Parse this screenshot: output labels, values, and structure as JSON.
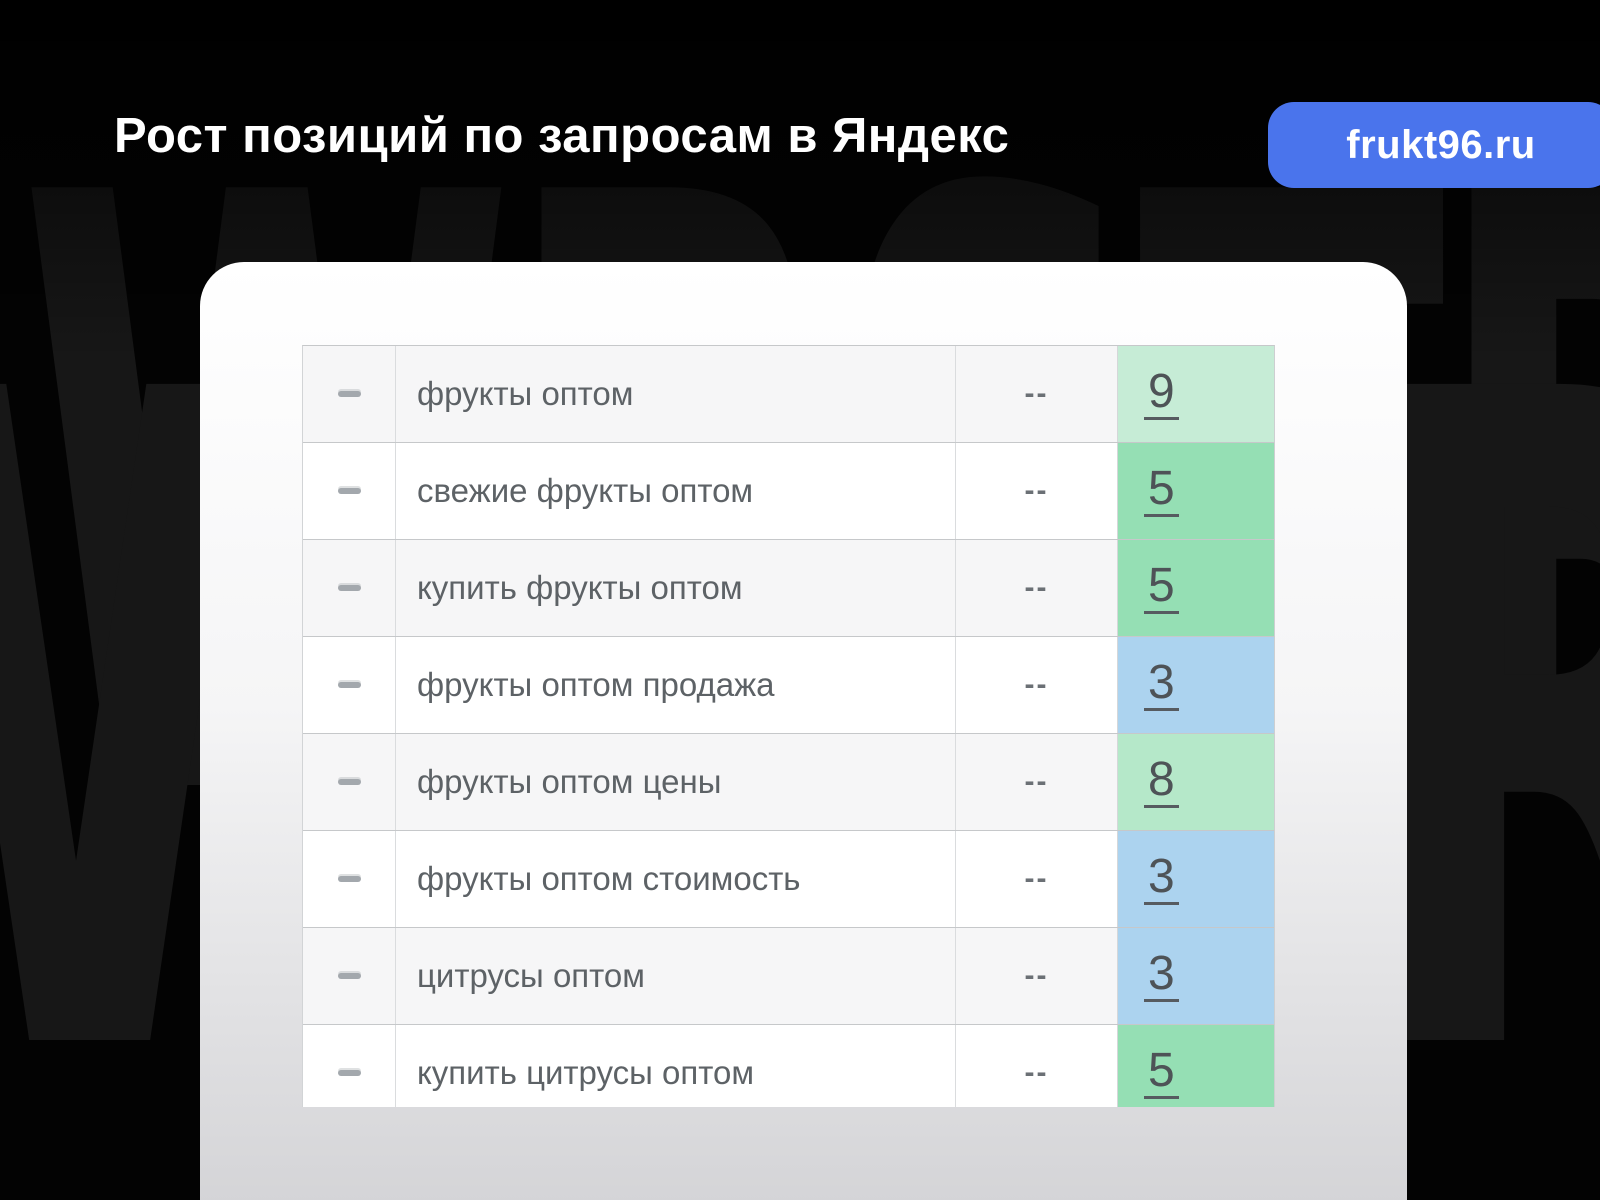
{
  "header": {
    "title": "Рост позиций по запросам в Яндекс",
    "badge": "frukt96.ru",
    "badge_color": "#4a74ec"
  },
  "watermark": {
    "line1": "WBSTR",
    "line2_left_letter": "W",
    "line2_right_letter": "R"
  },
  "table": {
    "rows": [
      {
        "keyword": "фрукты оптом",
        "old": "--",
        "value": "9",
        "color": "#c6ecd6"
      },
      {
        "keyword": "свежие фрукты оптом",
        "old": "--",
        "value": "5",
        "color": "#95dfb4"
      },
      {
        "keyword": "купить фрукты оптом",
        "old": "--",
        "value": "5",
        "color": "#95dfb4"
      },
      {
        "keyword": "фрукты оптом продажа",
        "old": "--",
        "value": "3",
        "color": "#acd3ef"
      },
      {
        "keyword": "фрукты оптом цены",
        "old": "--",
        "value": "8",
        "color": "#b5e8c9"
      },
      {
        "keyword": "фрукты оптом стоимость",
        "old": "--",
        "value": "3",
        "color": "#acd3ef"
      },
      {
        "keyword": "цитрусы оптом",
        "old": "--",
        "value": "3",
        "color": "#acd3ef"
      },
      {
        "keyword": "купить цитрусы оптом",
        "old": "--",
        "value": "5",
        "color": "#95dfb4"
      }
    ]
  }
}
